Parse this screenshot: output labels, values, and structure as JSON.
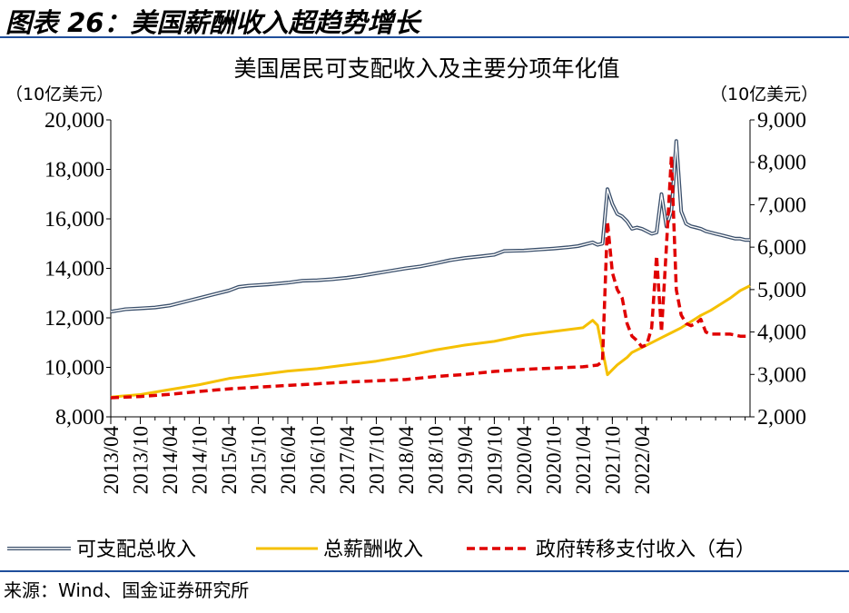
{
  "figure_title": "图表 26：美国薪酬收入超趋势增长",
  "source": "来源：Wind、国金证券研究所",
  "colors": {
    "disposable": "#3a4f6b",
    "wages": "#f5c000",
    "transfers": "#e00000",
    "rule": "#1f4e9b"
  },
  "chart_data": {
    "type": "line",
    "title": "美国居民可支配收入及主要分项年化值",
    "ylabel_left": "（10亿美元）",
    "ylabel_right": "（10亿美元）",
    "ylim_left": [
      8000,
      20000
    ],
    "ylim_right": [
      2000,
      9000
    ],
    "yticks_left": [
      "8,000",
      "10,000",
      "12,000",
      "14,000",
      "16,000",
      "18,000",
      "20,000"
    ],
    "yticks_right": [
      "2,000",
      "3,000",
      "4,000",
      "5,000",
      "6,000",
      "7,000",
      "8,000",
      "9,000"
    ],
    "x_start": "2013/04",
    "x_end": "2022/06",
    "xticks": [
      "2013/04",
      "2013/10",
      "2014/04",
      "2014/10",
      "2015/04",
      "2015/10",
      "2016/04",
      "2016/10",
      "2017/04",
      "2017/10",
      "2018/04",
      "2018/10",
      "2019/04",
      "2019/10",
      "2020/04",
      "2020/10",
      "2021/04",
      "2021/10",
      "2022/04"
    ],
    "legend": [
      "可支配总收入",
      "总薪酬收入",
      "政府转移支付收入（右）"
    ],
    "series": [
      {
        "name": "可支配总收入",
        "axis": "left",
        "style": "double",
        "points": [
          [
            0,
            12250
          ],
          [
            3,
            12350
          ],
          [
            6,
            12380
          ],
          [
            9,
            12420
          ],
          [
            12,
            12500
          ],
          [
            15,
            12650
          ],
          [
            18,
            12800
          ],
          [
            21,
            12950
          ],
          [
            24,
            13100
          ],
          [
            26,
            13250
          ],
          [
            28,
            13300
          ],
          [
            32,
            13350
          ],
          [
            36,
            13420
          ],
          [
            39,
            13500
          ],
          [
            42,
            13520
          ],
          [
            45,
            13560
          ],
          [
            48,
            13620
          ],
          [
            51,
            13700
          ],
          [
            54,
            13800
          ],
          [
            57,
            13900
          ],
          [
            60,
            14000
          ],
          [
            63,
            14080
          ],
          [
            66,
            14200
          ],
          [
            69,
            14330
          ],
          [
            72,
            14420
          ],
          [
            75,
            14480
          ],
          [
            78,
            14550
          ],
          [
            80,
            14700
          ],
          [
            84,
            14720
          ],
          [
            87,
            14760
          ],
          [
            90,
            14800
          ],
          [
            93,
            14850
          ],
          [
            95,
            14900
          ],
          [
            98,
            15050
          ],
          [
            99,
            14950
          ],
          [
            100,
            15000
          ],
          [
            101,
            17200
          ],
          [
            102,
            16600
          ],
          [
            103,
            16200
          ],
          [
            104,
            16100
          ],
          [
            105,
            15900
          ],
          [
            106,
            15600
          ],
          [
            107,
            15650
          ],
          [
            108,
            15600
          ],
          [
            109,
            15500
          ],
          [
            110,
            15400
          ],
          [
            111,
            15450
          ],
          [
            112,
            17000
          ],
          [
            113,
            15700
          ],
          [
            114,
            16300
          ],
          [
            115,
            19150
          ],
          [
            116,
            16300
          ],
          [
            117,
            15800
          ],
          [
            118,
            15700
          ],
          [
            119,
            15650
          ],
          [
            120,
            15600
          ],
          [
            121,
            15500
          ],
          [
            122,
            15450
          ],
          [
            123,
            15400
          ],
          [
            124,
            15350
          ],
          [
            125,
            15300
          ],
          [
            126,
            15250
          ],
          [
            127,
            15200
          ],
          [
            128,
            15200
          ],
          [
            129,
            15150
          ],
          [
            130,
            15150
          ]
        ]
      },
      {
        "name": "总薪酬收入",
        "axis": "left",
        "style": "solid",
        "points": [
          [
            0,
            8800
          ],
          [
            6,
            8900
          ],
          [
            12,
            9100
          ],
          [
            18,
            9300
          ],
          [
            24,
            9550
          ],
          [
            30,
            9700
          ],
          [
            36,
            9850
          ],
          [
            42,
            9950
          ],
          [
            48,
            10100
          ],
          [
            54,
            10250
          ],
          [
            60,
            10450
          ],
          [
            66,
            10700
          ],
          [
            72,
            10900
          ],
          [
            78,
            11050
          ],
          [
            84,
            11300
          ],
          [
            90,
            11450
          ],
          [
            96,
            11600
          ],
          [
            98,
            11900
          ],
          [
            99,
            11700
          ],
          [
            100,
            10700
          ],
          [
            101,
            9700
          ],
          [
            102,
            9900
          ],
          [
            103,
            10100
          ],
          [
            104,
            10250
          ],
          [
            105,
            10400
          ],
          [
            106,
            10600
          ],
          [
            108,
            10800
          ],
          [
            110,
            11000
          ],
          [
            112,
            11200
          ],
          [
            114,
            11400
          ],
          [
            116,
            11600
          ],
          [
            118,
            11850
          ],
          [
            120,
            12100
          ],
          [
            122,
            12300
          ],
          [
            124,
            12550
          ],
          [
            126,
            12800
          ],
          [
            128,
            13100
          ],
          [
            130,
            13300
          ]
        ]
      },
      {
        "name": "政府转移支付收入（右）",
        "axis": "right",
        "style": "dashed",
        "points": [
          [
            0,
            2450
          ],
          [
            6,
            2480
          ],
          [
            12,
            2530
          ],
          [
            18,
            2600
          ],
          [
            24,
            2660
          ],
          [
            30,
            2700
          ],
          [
            36,
            2740
          ],
          [
            42,
            2780
          ],
          [
            48,
            2820
          ],
          [
            54,
            2850
          ],
          [
            60,
            2880
          ],
          [
            66,
            2950
          ],
          [
            72,
            3000
          ],
          [
            78,
            3070
          ],
          [
            84,
            3120
          ],
          [
            90,
            3150
          ],
          [
            96,
            3180
          ],
          [
            99,
            3220
          ],
          [
            100,
            3300
          ],
          [
            101,
            6600
          ],
          [
            102,
            5400
          ],
          [
            103,
            5000
          ],
          [
            104,
            4800
          ],
          [
            105,
            4200
          ],
          [
            106,
            3900
          ],
          [
            107,
            3800
          ],
          [
            108,
            3650
          ],
          [
            109,
            3700
          ],
          [
            110,
            4100
          ],
          [
            111,
            5800
          ],
          [
            112,
            4000
          ],
          [
            113,
            6000
          ],
          [
            114,
            8150
          ],
          [
            115,
            5000
          ],
          [
            116,
            4400
          ],
          [
            117,
            4200
          ],
          [
            118,
            4150
          ],
          [
            119,
            4200
          ],
          [
            120,
            4300
          ],
          [
            121,
            4000
          ],
          [
            122,
            3950
          ],
          [
            124,
            3950
          ],
          [
            126,
            3950
          ],
          [
            128,
            3900
          ],
          [
            130,
            3900
          ]
        ]
      }
    ]
  }
}
